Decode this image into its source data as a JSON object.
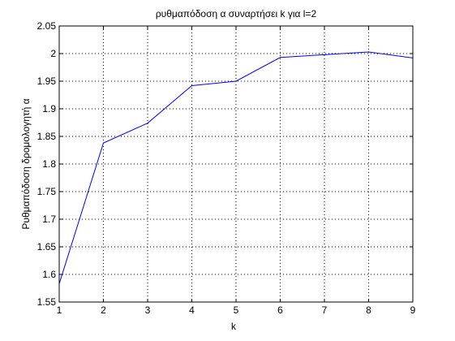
{
  "chart_data": {
    "type": "line",
    "title": "ρυθμαπόδοση α συναρτήσει k για l=2",
    "xlabel": "k",
    "ylabel": "Ρυθμαπόδοση δρομολογητή α",
    "x": [
      1,
      2,
      3,
      4,
      5,
      6,
      7,
      8,
      9
    ],
    "series": [
      {
        "values": [
          1.583,
          1.838,
          1.874,
          1.942,
          1.95,
          1.993,
          1.998,
          2.003,
          1.992
        ],
        "color": "#0000ff"
      }
    ],
    "xlim": [
      1,
      9
    ],
    "ylim": [
      1.55,
      2.05
    ],
    "xticks": [
      "1",
      "2",
      "3",
      "4",
      "5",
      "6",
      "7",
      "8",
      "9"
    ],
    "yticks": [
      "1.55",
      "1.6",
      "1.65",
      "1.7",
      "1.75",
      "1.8",
      "1.85",
      "1.9",
      "1.95",
      "2",
      "2.05"
    ],
    "grid": true,
    "grid_style": "dotted"
  }
}
